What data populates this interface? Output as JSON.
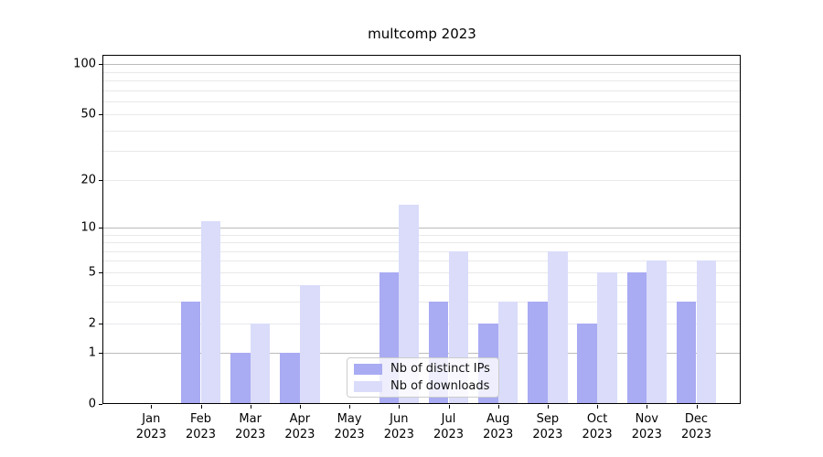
{
  "title": "multcomp 2023",
  "chart_data": {
    "type": "bar",
    "title": "multcomp 2023",
    "categories": [
      "Jan",
      "Feb",
      "Mar",
      "Apr",
      "May",
      "Jun",
      "Jul",
      "Aug",
      "Sep",
      "Oct",
      "Nov",
      "Dec"
    ],
    "category_year": "2023",
    "series": [
      {
        "name": "Nb of distinct IPs",
        "color": "#a9abf3",
        "values": [
          0,
          3,
          1,
          1,
          0,
          5,
          3,
          2,
          3,
          2,
          5,
          3
        ]
      },
      {
        "name": "Nb of downloads",
        "color": "#dadcfa",
        "values": [
          0,
          11,
          2,
          4,
          0,
          14,
          7,
          3,
          7,
          5,
          6,
          6
        ]
      }
    ],
    "yscale": "log1p",
    "ylim": [
      0,
      110
    ],
    "yticks_labeled": [
      0,
      1,
      2,
      5,
      10,
      20,
      50,
      100
    ],
    "gridlines_major": [
      1,
      10,
      100
    ],
    "gridlines_minor": [
      2,
      3,
      4,
      5,
      6,
      7,
      8,
      9,
      20,
      30,
      40,
      50,
      60,
      70,
      80,
      90
    ],
    "grid": true,
    "legend_position": "lower center",
    "xlabel": "",
    "ylabel": ""
  },
  "colors": {
    "background": "#ffffff",
    "spine": "#000000",
    "major_grid": "#bbbbbb",
    "minor_grid": "#e9e9ec",
    "legend_border": "#cccccc"
  }
}
